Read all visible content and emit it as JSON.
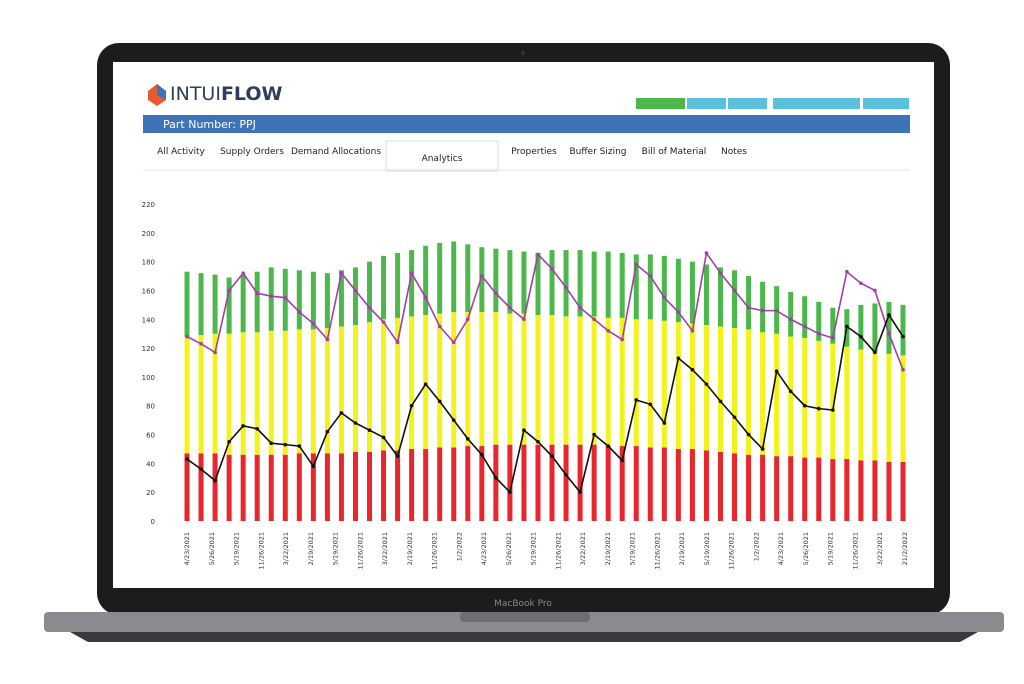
{
  "device": {
    "label": "MacBook Pro"
  },
  "app": {
    "logo": {
      "plain": "INTUI",
      "bold": "FLOW"
    },
    "part_number": "Part Number: PPJ",
    "tabs": [
      "All Activity",
      "Supply Orders",
      "Demand Allocations",
      "Analytics",
      "Properties",
      "Buffer Sizing",
      "Bill of Material",
      "Notes"
    ]
  },
  "chart_data": {
    "type": "stacked_bar_line",
    "xtick_labels": [
      "4/23/2021",
      "5/26/2021",
      "5/19/2021",
      "11/26/2021",
      "3/22/2021",
      "2/19/2021",
      "5/19/2021",
      "11/26/2021",
      "3/22/2021",
      "2/19/2021",
      "11/26/2021",
      "1/2/2022",
      "4/23/2021",
      "5/26/2021",
      "5/19/2021",
      "11/26/2021",
      "3/22/2021",
      "2/19/2021",
      "5/19/2021",
      "11/26/2021",
      "2/19/2021",
      "5/19/2021",
      "11/26/2021",
      "1/2/2022",
      "4/23/2021",
      "5/26/2021",
      "5/19/2021",
      "11/26/2021",
      "3/22/2021",
      "21/2/2022"
    ],
    "ylim": [
      0,
      220
    ],
    "yticks": [
      0,
      20,
      40,
      60,
      80,
      100,
      120,
      140,
      160,
      180,
      200,
      220
    ],
    "series": [
      {
        "color": "#e8262d",
        "kind": "bar",
        "values": [
          47,
          47,
          47,
          46,
          46,
          46,
          46,
          46,
          47,
          47,
          47,
          47,
          48,
          48,
          49,
          49,
          50,
          50,
          51,
          51,
          52,
          52,
          53,
          53,
          53,
          53,
          53,
          53,
          53,
          53,
          52,
          52,
          52,
          51,
          51,
          50,
          50,
          49,
          48,
          47,
          46,
          46,
          45,
          45,
          44,
          44,
          43,
          43,
          42,
          42,
          41,
          41
        ]
      },
      {
        "color": "#f2f21c",
        "kind": "bar",
        "values": [
          81,
          82,
          83,
          84,
          85,
          85,
          86,
          86,
          86,
          86,
          87,
          88,
          88,
          90,
          91,
          92,
          92,
          93,
          93,
          94,
          93,
          93,
          92,
          91,
          91,
          90,
          90,
          89,
          89,
          89,
          89,
          89,
          88,
          89,
          88,
          88,
          87,
          87,
          87,
          87,
          87,
          85,
          85,
          83,
          83,
          81,
          80,
          78,
          77,
          75,
          75,
          74
        ]
      },
      {
        "color": "#4cb84c",
        "kind": "bar",
        "values": [
          45,
          43,
          41,
          39,
          40,
          42,
          44,
          43,
          41,
          40,
          38,
          39,
          40,
          42,
          44,
          45,
          46,
          48,
          49,
          49,
          47,
          45,
          44,
          44,
          43,
          43,
          45,
          46,
          46,
          45,
          46,
          45,
          45,
          45,
          45,
          44,
          43,
          42,
          41,
          40,
          37,
          35,
          33,
          31,
          29,
          27,
          25,
          26,
          31,
          34,
          36,
          35
        ]
      },
      {
        "color": "#a040a8",
        "kind": "line",
        "values": [
          128,
          123,
          117,
          160,
          172,
          158,
          156,
          155,
          145,
          137,
          126,
          172,
          160,
          148,
          138,
          124,
          172,
          155,
          135,
          124,
          140,
          170,
          158,
          148,
          140,
          185,
          175,
          162,
          148,
          140,
          132,
          126,
          178,
          170,
          155,
          145,
          132,
          186,
          172,
          160,
          148,
          146,
          146,
          140,
          135,
          130,
          127,
          173,
          165,
          160,
          130,
          105
        ]
      },
      {
        "color": "#111111",
        "kind": "line",
        "values": [
          43,
          36,
          28,
          55,
          66,
          64,
          54,
          53,
          52,
          38,
          62,
          75,
          68,
          63,
          58,
          45,
          80,
          95,
          83,
          70,
          57,
          46,
          30,
          20,
          63,
          55,
          45,
          32,
          20,
          60,
          52,
          42,
          84,
          81,
          68,
          113,
          105,
          95,
          83,
          72,
          60,
          50,
          104,
          90,
          80,
          78,
          77,
          135,
          128,
          117,
          143,
          128
        ]
      }
    ]
  }
}
